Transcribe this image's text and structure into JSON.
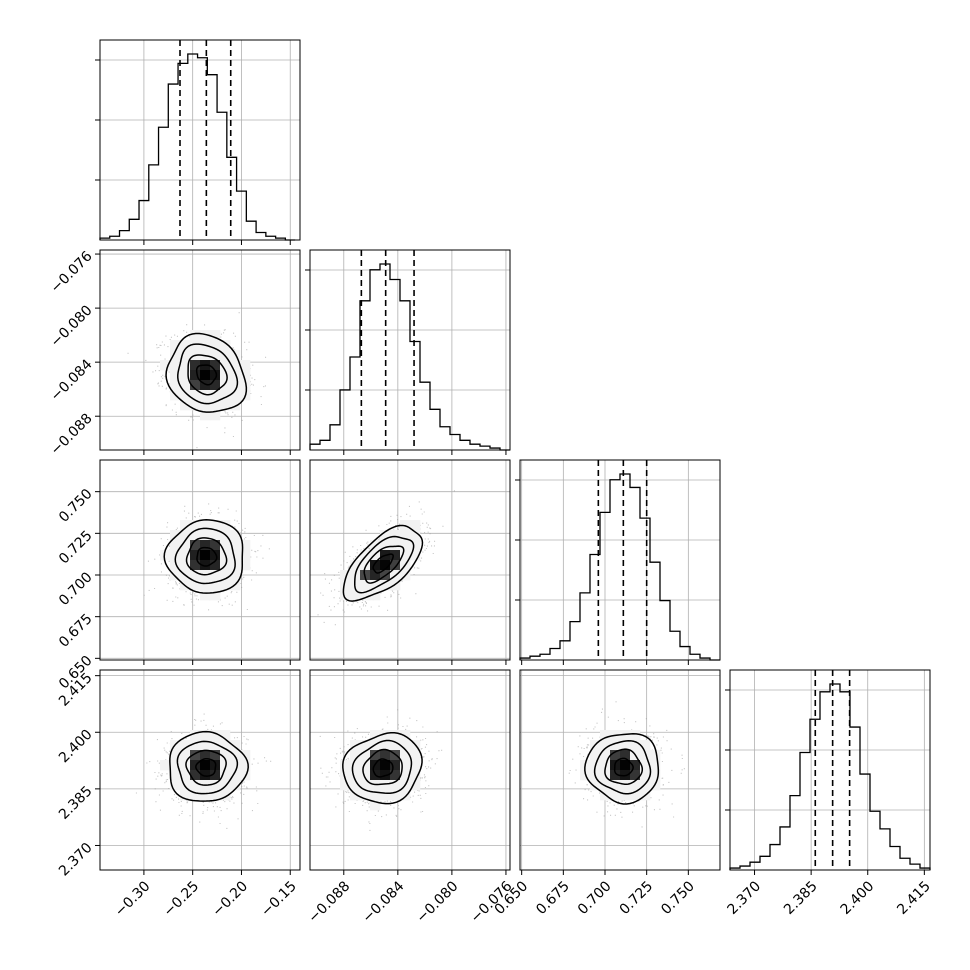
{
  "chart_data": {
    "type": "corner",
    "title": "",
    "grid": true,
    "parameters": [
      {
        "name": "",
        "range": [
          -0.345,
          -0.14
        ],
        "ticks": [
          -0.3,
          -0.25,
          -0.2,
          -0.15
        ],
        "tick_labels": [
          "−0.30",
          "−0.25",
          "−0.20",
          "−0.15"
        ],
        "quantiles": [
          -0.263,
          -0.236,
          -0.211
        ],
        "hist": {
          "bin_edges": [
            -0.345,
            -0.335,
            -0.325,
            -0.315,
            -0.305,
            -0.295,
            -0.285,
            -0.275,
            -0.265,
            -0.255,
            -0.245,
            -0.235,
            -0.225,
            -0.215,
            -0.205,
            -0.195,
            -0.185,
            -0.175,
            -0.165,
            -0.155,
            -0.145
          ],
          "counts": [
            1,
            2,
            5,
            11,
            21,
            40,
            60,
            83,
            94,
            99,
            97,
            88,
            68,
            44,
            26,
            10,
            4,
            2,
            1,
            0
          ]
        }
      },
      {
        "name": "",
        "range": [
          -0.0905,
          -0.0757
        ],
        "ticks": [
          -0.088,
          -0.084,
          -0.08,
          -0.076
        ],
        "tick_labels": [
          "−0.088",
          "−0.084",
          "−0.080",
          "−0.076"
        ],
        "quantiles": [
          -0.0867,
          -0.0849,
          -0.0828
        ],
        "hist": {
          "bin_edges": [
            -0.0905,
            -0.08976,
            -0.08902,
            -0.08828,
            -0.08754,
            -0.0868,
            -0.08606,
            -0.08532,
            -0.08458,
            -0.08384,
            -0.0831,
            -0.08236,
            -0.08162,
            -0.08088,
            -0.08014,
            -0.0794,
            -0.07866,
            -0.07792,
            -0.07718,
            -0.07644,
            -0.0757
          ],
          "counts": [
            3,
            5,
            13,
            31,
            48,
            77,
            93,
            96,
            88,
            77,
            56,
            35,
            21,
            12,
            8,
            5,
            3,
            2,
            1,
            0
          ]
        }
      },
      {
        "name": "",
        "range": [
          0.649,
          0.769
        ],
        "ticks": [
          0.65,
          0.675,
          0.7,
          0.725,
          0.75
        ],
        "tick_labels": [
          "0.650",
          "0.675",
          "0.700",
          "0.725",
          "0.750"
        ],
        "quantiles": [
          0.696,
          0.711,
          0.725
        ],
        "hist": {
          "bin_edges": [
            0.649,
            0.655,
            0.661,
            0.667,
            0.673,
            0.679,
            0.685,
            0.691,
            0.697,
            0.703,
            0.709,
            0.715,
            0.721,
            0.727,
            0.733,
            0.739,
            0.745,
            0.751,
            0.757,
            0.763,
            0.769
          ],
          "counts": [
            1,
            2,
            3,
            6,
            10,
            20,
            35,
            55,
            77,
            94,
            97,
            90,
            74,
            51,
            31,
            15,
            7,
            3,
            1,
            0
          ]
        }
      },
      {
        "name": "",
        "range": [
          2.3635,
          2.4165
        ],
        "ticks": [
          2.37,
          2.385,
          2.4,
          2.415
        ],
        "tick_labels": [
          "2.370",
          "2.385",
          "2.400",
          "2.415"
        ],
        "quantiles": [
          2.3861,
          2.3907,
          2.3952
        ],
        "hist": {
          "bin_edges": [
            2.3635,
            2.36615,
            2.3688,
            2.37145,
            2.3741,
            2.37675,
            2.3794,
            2.38205,
            2.3847,
            2.38735,
            2.39,
            2.39265,
            2.3953,
            2.39795,
            2.4006,
            2.40325,
            2.4059,
            2.40855,
            2.4112,
            2.41385,
            2.4165
          ],
          "counts": [
            1,
            2,
            4,
            7,
            13,
            22,
            38,
            60,
            77,
            91,
            95,
            91,
            73,
            49,
            30,
            21,
            12,
            6,
            3,
            1
          ]
        }
      }
    ],
    "pairs": [
      {
        "x": 0,
        "y": 1,
        "center": [
          -0.236,
          -0.0849
        ],
        "sigma": [
          0.02,
          0.00145
        ],
        "rho": -0.15
      },
      {
        "x": 0,
        "y": 2,
        "center": [
          -0.236,
          0.711
        ],
        "sigma": [
          0.02,
          0.011
        ],
        "rho": 0.0
      },
      {
        "x": 1,
        "y": 2,
        "center": [
          -0.0851,
          0.707
        ],
        "sigma": [
          0.00145,
          0.011
        ],
        "rho": 0.62
      },
      {
        "x": 0,
        "y": 3,
        "center": [
          -0.236,
          2.3907
        ],
        "sigma": [
          0.02,
          0.0046
        ],
        "rho": 0.0
      },
      {
        "x": 1,
        "y": 3,
        "center": [
          -0.0851,
          2.3905
        ],
        "sigma": [
          0.00145,
          0.0046
        ],
        "rho": 0.1
      },
      {
        "x": 2,
        "y": 3,
        "center": [
          0.711,
          2.3907
        ],
        "sigma": [
          0.011,
          0.0046
        ],
        "rho": 0.0
      }
    ],
    "contour_sigmas": [
      0.5,
      1.0,
      1.5,
      2.0
    ],
    "colors": {
      "line": "#000000",
      "grid": "#b0b0b0",
      "points": "#9a9a9a",
      "density_max": "#000000"
    }
  }
}
